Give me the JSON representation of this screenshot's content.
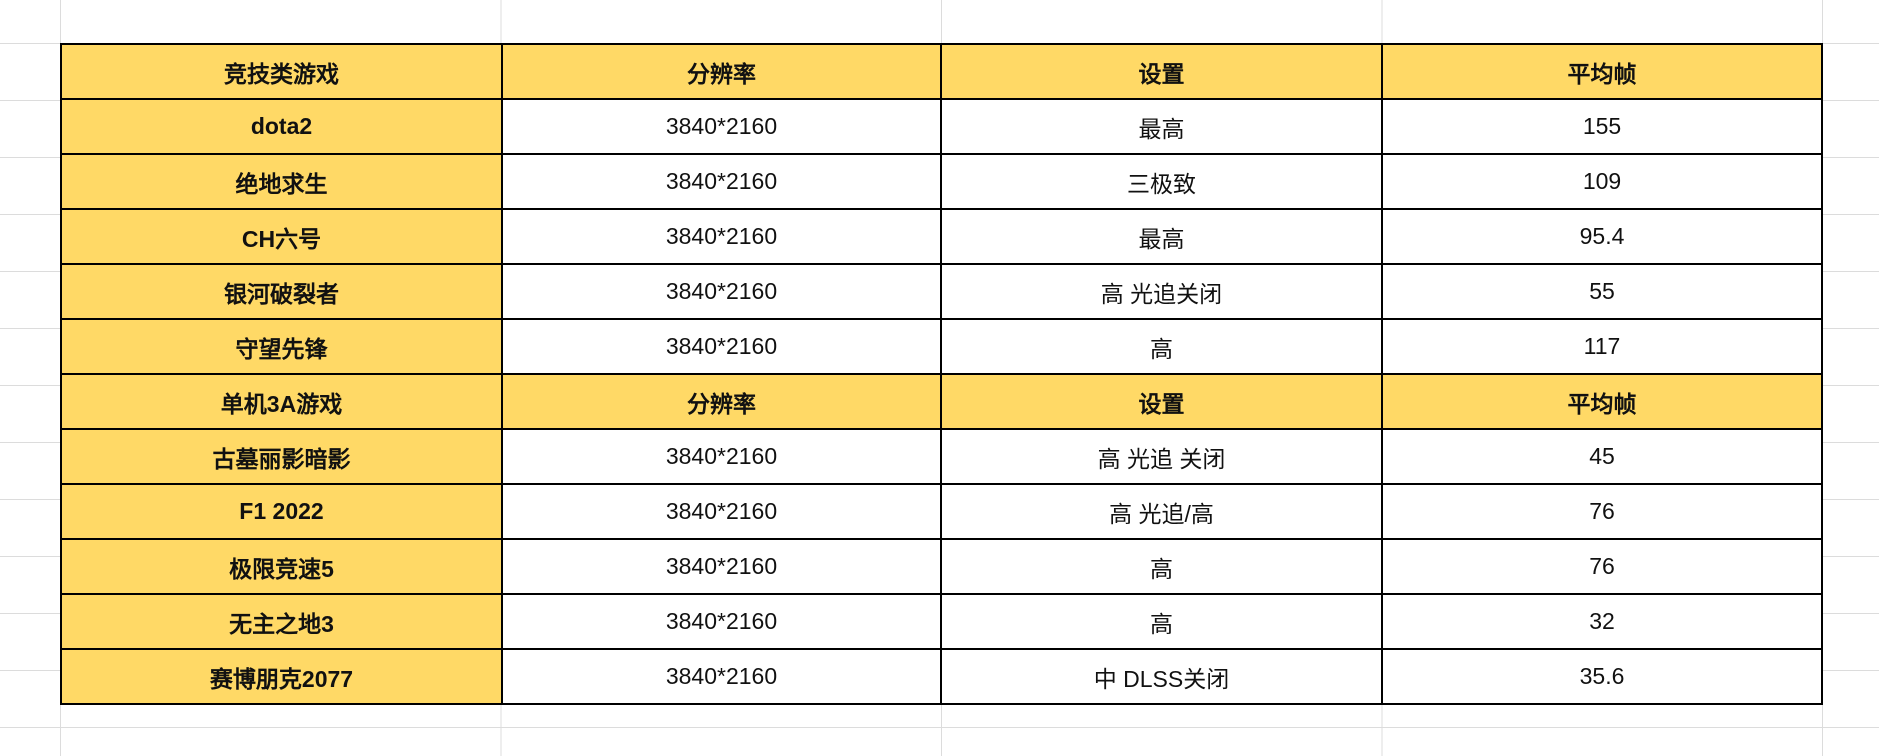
{
  "header_fill_color": "#FFD966",
  "sections": [
    {
      "header": [
        "竞技类游戏",
        "分辨率",
        "设置",
        "平均帧"
      ],
      "rows": [
        [
          "dota2",
          "3840*2160",
          "最高",
          "155"
        ],
        [
          "绝地求生",
          "3840*2160",
          "三极致",
          "109"
        ],
        [
          "CH六号",
          "3840*2160",
          "最高",
          "95.4"
        ],
        [
          "银河破裂者",
          "3840*2160",
          "高 光追关闭",
          "55"
        ],
        [
          "守望先锋",
          "3840*2160",
          "高",
          "117"
        ]
      ]
    },
    {
      "header": [
        "单机3A游戏",
        "分辨率",
        "设置",
        "平均帧"
      ],
      "rows": [
        [
          "古墓丽影暗影",
          "3840*2160",
          "高 光追 关闭",
          "45"
        ],
        [
          "F1 2022",
          "3840*2160",
          "高 光追/高",
          "76"
        ],
        [
          "极限竞速5",
          "3840*2160",
          "高",
          "76"
        ],
        [
          "无主之地3",
          "3840*2160",
          "高",
          "32"
        ],
        [
          "赛博朋克2077",
          "3840*2160",
          "中 DLSS关闭",
          "35.6"
        ]
      ]
    }
  ]
}
